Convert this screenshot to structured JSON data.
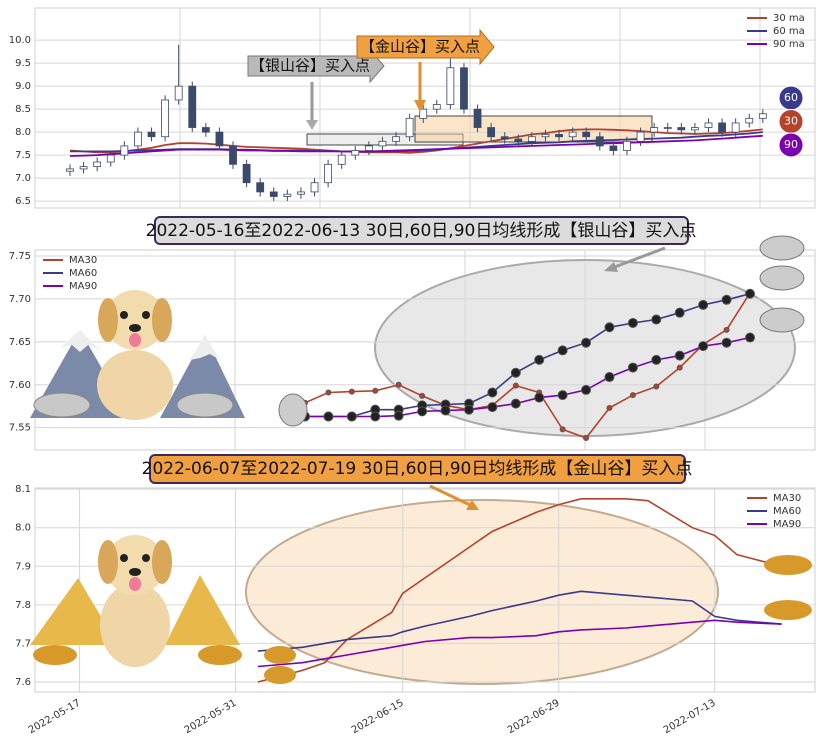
{
  "chart_data": [
    {
      "type": "candlestick",
      "open": [
        7.15,
        7.2,
        7.25,
        7.35,
        7.5,
        7.7,
        8.0,
        7.9,
        8.7,
        9.0,
        8.1,
        8.0,
        7.7,
        7.3,
        6.9,
        6.7,
        6.6,
        6.65,
        6.7,
        6.9,
        7.3,
        7.5,
        7.6,
        7.7,
        7.8,
        7.9,
        8.3,
        8.5,
        8.6,
        9.4,
        8.5,
        8.1,
        7.9,
        7.85,
        7.8,
        7.9,
        7.95,
        7.9,
        8.0,
        7.9,
        7.7,
        7.6,
        7.8,
        8.0,
        8.1,
        8.1,
        8.05,
        8.1,
        8.2,
        8.0,
        8.2,
        8.3
      ],
      "high": [
        7.3,
        7.35,
        7.45,
        7.6,
        7.8,
        8.1,
        8.1,
        8.8,
        9.9,
        9.1,
        8.2,
        8.1,
        7.8,
        7.4,
        7.0,
        6.8,
        6.75,
        6.8,
        7.0,
        7.4,
        7.6,
        7.7,
        7.8,
        7.9,
        8.0,
        8.4,
        8.6,
        8.7,
        9.7,
        9.5,
        8.6,
        8.2,
        8.0,
        7.95,
        8.0,
        8.05,
        8.05,
        8.1,
        8.1,
        8.0,
        7.8,
        7.9,
        8.1,
        8.2,
        8.2,
        8.2,
        8.2,
        8.3,
        8.3,
        8.3,
        8.4,
        8.5
      ],
      "low": [
        7.05,
        7.1,
        7.15,
        7.25,
        7.4,
        7.6,
        7.8,
        7.8,
        8.6,
        8.0,
        7.9,
        7.6,
        7.2,
        6.8,
        6.6,
        6.5,
        6.5,
        6.55,
        6.6,
        6.8,
        7.2,
        7.4,
        7.5,
        7.6,
        7.7,
        7.8,
        8.2,
        8.4,
        8.5,
        8.4,
        8.0,
        7.8,
        7.75,
        7.7,
        7.7,
        7.8,
        7.8,
        7.8,
        7.8,
        7.6,
        7.5,
        7.5,
        7.7,
        7.9,
        8.0,
        7.95,
        7.95,
        8.0,
        7.9,
        7.9,
        8.1,
        8.2
      ],
      "close": [
        7.2,
        7.25,
        7.35,
        7.5,
        7.7,
        8.0,
        7.9,
        8.7,
        9.0,
        8.1,
        8.0,
        7.7,
        7.3,
        6.9,
        6.7,
        6.6,
        6.65,
        6.7,
        6.9,
        7.3,
        7.5,
        7.6,
        7.7,
        7.8,
        7.9,
        8.3,
        8.5,
        8.6,
        9.4,
        8.5,
        8.1,
        7.9,
        7.85,
        7.8,
        7.9,
        7.95,
        7.9,
        8.0,
        7.9,
        7.7,
        7.6,
        7.8,
        8.0,
        8.1,
        8.1,
        8.05,
        8.1,
        8.2,
        8.0,
        8.2,
        8.3,
        8.4
      ],
      "up_color": "#ffffff",
      "down_color": "#3b4a6b",
      "series": [
        {
          "name": "30 ma",
          "color": "#b5422c",
          "values": [
            7.6,
            7.58,
            7.56,
            7.56,
            7.58,
            7.62,
            7.66,
            7.72,
            7.76,
            7.76,
            7.75,
            7.73,
            7.7,
            7.68,
            7.67,
            7.66,
            7.65,
            7.64,
            7.62,
            7.6,
            7.58,
            7.57,
            7.56,
            7.56,
            7.56,
            7.55,
            7.57,
            7.6,
            7.65,
            7.7,
            7.75,
            7.8,
            7.85,
            7.9,
            7.95,
            7.98,
            8.02,
            8.05,
            8.06,
            8.06,
            8.05,
            8.04,
            8.02,
            8.0,
            7.98,
            7.97,
            7.96,
            7.97,
            7.98,
            8.0,
            8.03,
            8.06
          ]
        },
        {
          "name": "60 ma",
          "color": "#3a3a8c",
          "values": [
            7.58,
            7.58,
            7.58,
            7.58,
            7.59,
            7.6,
            7.61,
            7.62,
            7.63,
            7.63,
            7.63,
            7.63,
            7.62,
            7.62,
            7.61,
            7.6,
            7.6,
            7.6,
            7.59,
            7.59,
            7.58,
            7.58,
            7.58,
            7.58,
            7.58,
            7.59,
            7.6,
            7.62,
            7.64,
            7.66,
            7.68,
            7.7,
            7.72,
            7.74,
            7.76,
            7.77,
            7.78,
            7.8,
            7.81,
            7.82,
            7.83,
            7.84,
            7.85,
            7.86,
            7.87,
            7.88,
            7.9,
            7.92,
            7.93,
            7.95,
            7.97,
            8.0
          ]
        },
        {
          "name": "90 ma",
          "color": "#7b00b0",
          "values": [
            7.48,
            7.49,
            7.5,
            7.52,
            7.54,
            7.56,
            7.58,
            7.6,
            7.62,
            7.62,
            7.62,
            7.62,
            7.61,
            7.6,
            7.6,
            7.59,
            7.59,
            7.58,
            7.58,
            7.58,
            7.58,
            7.58,
            7.58,
            7.59,
            7.6,
            7.61,
            7.62,
            7.63,
            7.64,
            7.65,
            7.66,
            7.67,
            7.68,
            7.69,
            7.7,
            7.71,
            7.72,
            7.73,
            7.74,
            7.75,
            7.76,
            7.77,
            7.78,
            7.79,
            7.8,
            7.81,
            7.82,
            7.84,
            7.86,
            7.88,
            7.9,
            7.92
          ]
        }
      ],
      "ylim": [
        6.35,
        10.7
      ],
      "yticks": [
        6.5,
        {
          "value": 7,
          "label": "7.0"
        },
        7.5,
        {
          "value": 8,
          "label": "8.0"
        },
        8.5,
        {
          "value": 9,
          "label": "9.0"
        },
        9.5,
        {
          "value": 10,
          "label": "10.0"
        }
      ],
      "annotations": [
        "【银山谷】买入点",
        "【金山谷】买入点"
      ],
      "badges": [
        60,
        30,
        90
      ],
      "legend": "upper right",
      "grid": true
    },
    {
      "type": "line",
      "title": "2022-05-16至2022-06-13 30日,60日,90日均线形成【银山谷】买入点",
      "series": [
        {
          "name": "MA30",
          "color": "#b5422c",
          "values": [
            7.579,
            7.591,
            7.592,
            7.593,
            7.6,
            7.587,
            7.576,
            7.571,
            7.576,
            7.599,
            7.591,
            7.548,
            7.538,
            7.573,
            7.588,
            7.598,
            7.62,
            7.647,
            7.664,
            7.707
          ]
        },
        {
          "name": "MA60",
          "color": "#3a3a8c",
          "values": [
            7.563,
            7.563,
            7.563,
            7.571,
            7.571,
            7.576,
            7.577,
            7.578,
            7.591,
            7.614,
            7.629,
            7.64,
            7.649,
            7.667,
            7.672,
            7.676,
            7.684,
            7.693,
            7.699,
            7.706
          ]
        },
        {
          "name": "MA90",
          "color": "#7b00b0",
          "values": [
            7.563,
            7.563,
            7.563,
            7.563,
            7.564,
            7.569,
            7.57,
            7.571,
            7.574,
            7.578,
            7.585,
            7.588,
            7.594,
            7.609,
            7.62,
            7.629,
            7.634,
            7.645,
            7.649,
            7.655
          ]
        }
      ],
      "ylim": [
        7.524,
        7.757
      ],
      "yticks": [
        7.55,
        {
          "value": 7.6,
          "label": "7.60"
        },
        7.65,
        {
          "value": 7.7,
          "label": "7.70"
        },
        7.75
      ],
      "markers": true,
      "legend": "upper left",
      "grid": true
    },
    {
      "type": "line",
      "title": "2022-06-07至2022-07-19 30日,60日,90日均线形成【金山谷】买入点",
      "x": [
        "2022-06-02",
        "2022-06-06",
        "2022-06-08",
        "2022-06-10",
        "2022-06-14",
        "2022-06-15",
        "2022-06-17",
        "2022-06-21",
        "2022-06-23",
        "2022-06-27",
        "2022-06-29",
        "2022-07-01",
        "2022-07-05",
        "2022-07-07",
        "2022-07-11",
        "2022-07-13",
        "2022-07-15",
        "2022-07-19"
      ],
      "series": [
        {
          "name": "MA30",
          "color": "#b5422c",
          "values": [
            7.6,
            7.63,
            7.65,
            7.71,
            7.78,
            7.83,
            7.87,
            7.95,
            7.99,
            8.04,
            8.06,
            8.075,
            8.075,
            8.07,
            8.0,
            7.98,
            7.93,
            7.9
          ]
        },
        {
          "name": "MA60",
          "color": "#3a3a8c",
          "values": [
            7.68,
            7.69,
            7.7,
            7.71,
            7.72,
            7.73,
            7.745,
            7.77,
            7.785,
            7.81,
            7.825,
            7.835,
            7.825,
            7.82,
            7.81,
            7.77,
            7.76,
            7.75
          ]
        },
        {
          "name": "MA90",
          "color": "#7b00b0",
          "values": [
            7.64,
            7.65,
            7.66,
            7.67,
            7.69,
            7.695,
            7.705,
            7.715,
            7.715,
            7.72,
            7.73,
            7.735,
            7.74,
            7.745,
            7.755,
            7.76,
            7.755,
            7.75
          ]
        }
      ],
      "xlim": [
        "2022-05-13",
        "2022-07-22"
      ],
      "xticks": [
        "2022-05-17",
        "2022-05-31",
        "2022-06-15",
        "2022-06-29",
        "2022-07-13"
      ],
      "ylim": [
        7.574,
        8.103
      ],
      "yticks": [
        7.6,
        7.7,
        7.8,
        7.9,
        {
          "value": 8,
          "label": "8.0"
        },
        8.1
      ],
      "markers": false,
      "legend": "upper right",
      "grid": true
    }
  ]
}
